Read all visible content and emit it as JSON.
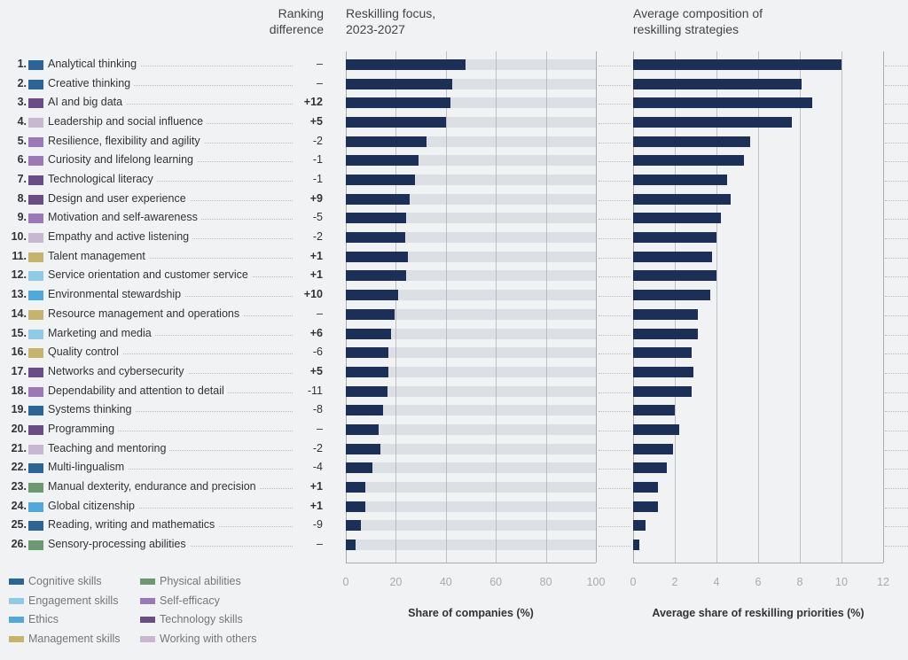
{
  "headers": {
    "ranking": "Ranking difference",
    "focus": "Reskilling focus, 2023-2027",
    "composition": "Average composition of reskilling strategies"
  },
  "legend": [
    {
      "name": "Cognitive skills",
      "color": "#2b6496"
    },
    {
      "name": "Engagement skills",
      "color": "#8fcbe6"
    },
    {
      "name": "Ethics",
      "color": "#4fa9da"
    },
    {
      "name": "Management skills",
      "color": "#c6b46d"
    },
    {
      "name": "Physical abilities",
      "color": "#6b9a70"
    },
    {
      "name": "Self-efficacy",
      "color": "#9b78b8"
    },
    {
      "name": "Technology skills",
      "color": "#6a4c86"
    },
    {
      "name": "Working with others",
      "color": "#c9b7d2"
    }
  ],
  "chart_data": [
    {
      "type": "bar",
      "title": "Reskilling focus, 2023-2027",
      "xlabel": "Share of companies (%)",
      "xlim": [
        0,
        100
      ],
      "ticks": [
        "0",
        "20",
        "40",
        "60",
        "80",
        "100"
      ],
      "values": [
        48,
        42.4,
        41.7,
        40.2,
        32.2,
        29.2,
        27.5,
        25.7,
        24,
        23.8,
        24.7,
        24,
        20.8,
        19.5,
        18.2,
        16.9,
        16.9,
        16.7,
        14.8,
        13.1,
        13.7,
        10.5,
        7.9,
        7.9,
        6,
        4
      ]
    },
    {
      "type": "bar",
      "title": "Average composition of reskilling strategies",
      "xlabel": "Average share of reskilling priorities (%)",
      "xlim": [
        0,
        12
      ],
      "ticks": [
        "0",
        "2",
        "4",
        "6",
        "8",
        "10",
        "12"
      ],
      "values": [
        10,
        8.1,
        8.6,
        7.6,
        5.6,
        5.3,
        4.5,
        4.7,
        4.2,
        4,
        3.8,
        4,
        3.7,
        3.1,
        3.1,
        2.8,
        2.9,
        2.8,
        2,
        2.2,
        1.9,
        1.6,
        1.2,
        1.2,
        0.6,
        0.3
      ]
    }
  ],
  "skills": [
    {
      "rank": "1.",
      "name": "Analytical thinking",
      "cat": 0,
      "diff": "–"
    },
    {
      "rank": "2.",
      "name": "Creative thinking",
      "cat": 0,
      "diff": "–"
    },
    {
      "rank": "3.",
      "name": "AI and big data",
      "cat": 6,
      "diff": "+12"
    },
    {
      "rank": "4.",
      "name": "Leadership and social influence",
      "cat": 7,
      "diff": "+5"
    },
    {
      "rank": "5.",
      "name": "Resilience, flexibility and agility",
      "cat": 5,
      "diff": "-2"
    },
    {
      "rank": "6.",
      "name": "Curiosity and lifelong learning",
      "cat": 5,
      "diff": "-1"
    },
    {
      "rank": "7.",
      "name": "Technological literacy",
      "cat": 6,
      "diff": "-1"
    },
    {
      "rank": "8.",
      "name": "Design and user experience",
      "cat": 6,
      "diff": "+9"
    },
    {
      "rank": "9.",
      "name": "Motivation and self-awareness",
      "cat": 5,
      "diff": "-5"
    },
    {
      "rank": "10.",
      "name": "Empathy and active listening",
      "cat": 7,
      "diff": "-2"
    },
    {
      "rank": "11.",
      "name": "Talent management",
      "cat": 3,
      "diff": "+1"
    },
    {
      "rank": "12.",
      "name": "Service orientation and customer service",
      "cat": 1,
      "diff": "+1"
    },
    {
      "rank": "13.",
      "name": "Environmental stewardship",
      "cat": 2,
      "diff": "+10"
    },
    {
      "rank": "14.",
      "name": "Resource management and operations",
      "cat": 3,
      "diff": "–"
    },
    {
      "rank": "15.",
      "name": "Marketing and media",
      "cat": 1,
      "diff": "+6"
    },
    {
      "rank": "16.",
      "name": "Quality control",
      "cat": 3,
      "diff": "-6"
    },
    {
      "rank": "17.",
      "name": "Networks and cybersecurity",
      "cat": 6,
      "diff": "+5"
    },
    {
      "rank": "18.",
      "name": "Dependability and attention to detail",
      "cat": 5,
      "diff": "-11"
    },
    {
      "rank": "19.",
      "name": "Systems thinking",
      "cat": 0,
      "diff": "-8"
    },
    {
      "rank": "20.",
      "name": "Programming",
      "cat": 6,
      "diff": "–"
    },
    {
      "rank": "21.",
      "name": "Teaching and mentoring",
      "cat": 7,
      "diff": "-2"
    },
    {
      "rank": "22.",
      "name": "Multi-lingualism",
      "cat": 0,
      "diff": "-4"
    },
    {
      "rank": "23.",
      "name": "Manual dexterity, endurance and precision",
      "cat": 4,
      "diff": "+1"
    },
    {
      "rank": "24.",
      "name": "Global citizenship",
      "cat": 2,
      "diff": "+1"
    },
    {
      "rank": "25.",
      "name": "Reading, writing and mathematics",
      "cat": 0,
      "diff": "-9"
    },
    {
      "rank": "26.",
      "name": "Sensory-processing abilities",
      "cat": 4,
      "diff": "–"
    }
  ],
  "colors": {
    "bar": "#1c2f57",
    "track": "#dcdfe4",
    "grid": "#a8abb0"
  }
}
